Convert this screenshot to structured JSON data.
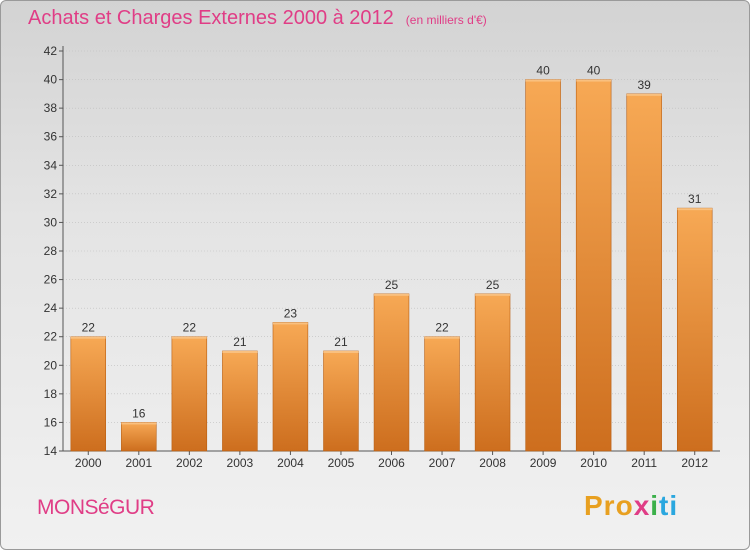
{
  "title": "Achats et Charges Externes 2000 à 2012",
  "unit_note": "(en milliers d'€)",
  "location": "MONSéGUR",
  "brand": {
    "p1": "Pro",
    "p2": "x",
    "p3": "i",
    "p4": "ti"
  },
  "colors": {
    "title": "#e03d86",
    "bar_light": "#f7a955",
    "bar_dark": "#cd6e1e",
    "bar_edge": "#b85e12",
    "axis": "#555555"
  },
  "chart_data": {
    "type": "bar",
    "title": "Achats et Charges Externes 2000 à 2012",
    "subtitle": "(en milliers d'€)",
    "categories": [
      "2000",
      "2001",
      "2002",
      "2003",
      "2004",
      "2005",
      "2006",
      "2007",
      "2008",
      "2009",
      "2010",
      "2011",
      "2012"
    ],
    "values": [
      22,
      16,
      22,
      21,
      23,
      21,
      25,
      22,
      25,
      40,
      40,
      39,
      31
    ],
    "ylim": [
      14,
      42
    ],
    "yticks": [
      14,
      16,
      18,
      20,
      22,
      24,
      26,
      28,
      30,
      32,
      34,
      36,
      38,
      40,
      42
    ],
    "grid": true
  }
}
